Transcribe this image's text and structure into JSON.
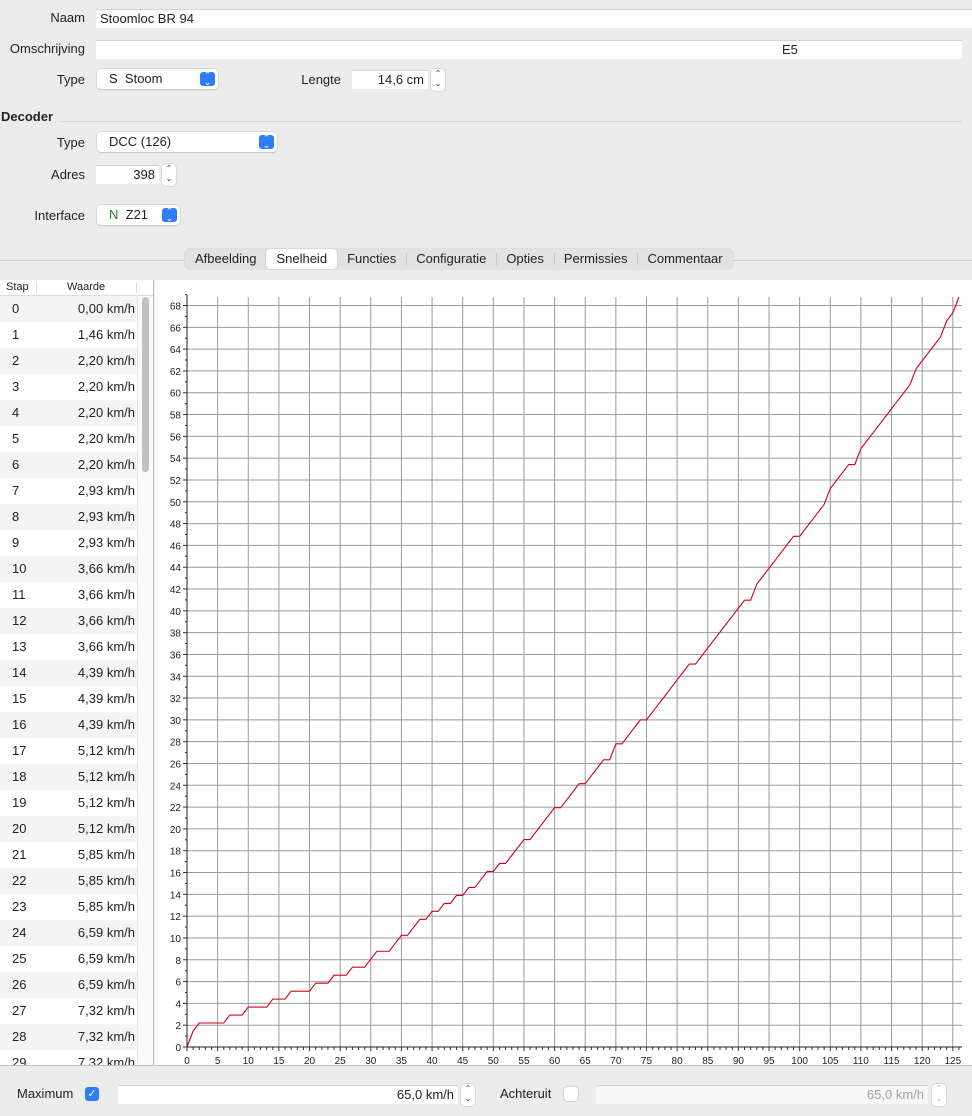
{
  "general": {
    "name_label": "Naam",
    "name_value": "Stoomloc BR 94",
    "description_label": "Omschrijving",
    "description_value": "E5",
    "type_label": "Type",
    "type_prefix": "S",
    "type_value": "Stoom",
    "length_label": "Lengte",
    "length_value": "14,6 cm"
  },
  "decoder": {
    "section_title": "Decoder",
    "type_label": "Type",
    "type_value": "DCC (126)",
    "address_label": "Adres",
    "address_value": "398",
    "interface_label": "Interface",
    "interface_prefix": "N",
    "interface_prefix_color": "#1a8a1a",
    "interface_value": "Z21"
  },
  "tabs": [
    {
      "label": "Afbeelding",
      "active": false
    },
    {
      "label": "Snelheid",
      "active": true
    },
    {
      "label": "Functies",
      "active": false
    },
    {
      "label": "Configuratie",
      "active": false
    },
    {
      "label": "Opties",
      "active": false
    },
    {
      "label": "Permissies",
      "active": false
    },
    {
      "label": "Commentaar",
      "active": false
    }
  ],
  "speed_table": {
    "columns": [
      "Stap",
      "Waarde"
    ],
    "rows": [
      [
        "0",
        "0,00 km/h"
      ],
      [
        "1",
        "1,46 km/h"
      ],
      [
        "2",
        "2,20 km/h"
      ],
      [
        "3",
        "2,20 km/h"
      ],
      [
        "4",
        "2,20 km/h"
      ],
      [
        "5",
        "2,20 km/h"
      ],
      [
        "6",
        "2,20 km/h"
      ],
      [
        "7",
        "2,93 km/h"
      ],
      [
        "8",
        "2,93 km/h"
      ],
      [
        "9",
        "2,93 km/h"
      ],
      [
        "10",
        "3,66 km/h"
      ],
      [
        "11",
        "3,66 km/h"
      ],
      [
        "12",
        "3,66 km/h"
      ],
      [
        "13",
        "3,66 km/h"
      ],
      [
        "14",
        "4,39 km/h"
      ],
      [
        "15",
        "4,39 km/h"
      ],
      [
        "16",
        "4,39 km/h"
      ],
      [
        "17",
        "5,12 km/h"
      ],
      [
        "18",
        "5,12 km/h"
      ],
      [
        "19",
        "5,12 km/h"
      ],
      [
        "20",
        "5,12 km/h"
      ],
      [
        "21",
        "5,85 km/h"
      ],
      [
        "22",
        "5,85 km/h"
      ],
      [
        "23",
        "5,85 km/h"
      ],
      [
        "24",
        "6,59 km/h"
      ],
      [
        "25",
        "6,59 km/h"
      ],
      [
        "26",
        "6,59 km/h"
      ],
      [
        "27",
        "7,32 km/h"
      ],
      [
        "28",
        "7,32 km/h"
      ],
      [
        "29",
        "7,32 km/h"
      ]
    ]
  },
  "chart_data": {
    "type": "line",
    "title": "",
    "xlabel": "",
    "ylabel": "",
    "xlim": [
      0,
      126.5
    ],
    "ylim": [
      0,
      68.78
    ],
    "x_ticks": [
      0,
      5,
      10,
      15,
      20,
      25,
      30,
      35,
      40,
      45,
      50,
      55,
      60,
      65,
      70,
      75,
      80,
      85,
      90,
      95,
      100,
      105,
      110,
      115,
      120,
      125
    ],
    "y_ticks": [
      0,
      2,
      4,
      6,
      8,
      10,
      12,
      14,
      16,
      18,
      20,
      22,
      24,
      26,
      28,
      30,
      32,
      34,
      36,
      38,
      40,
      42,
      44,
      46,
      48,
      50,
      52,
      54,
      56,
      58,
      60,
      62,
      64,
      66,
      68
    ],
    "grid": true,
    "line_color": "#d0021b",
    "series": [
      {
        "values": [
          0.0,
          1.46,
          2.2,
          2.2,
          2.2,
          2.2,
          2.2,
          2.93,
          2.93,
          2.93,
          3.66,
          3.66,
          3.66,
          3.66,
          4.39,
          4.39,
          4.39,
          5.12,
          5.12,
          5.12,
          5.12,
          5.85,
          5.85,
          5.85,
          6.59,
          6.59,
          6.59,
          7.32,
          7.32,
          7.32,
          8.05,
          8.78,
          8.78,
          8.78,
          9.51,
          10.24,
          10.24,
          10.98,
          11.71,
          11.71,
          12.44,
          12.44,
          13.17,
          13.17,
          13.9,
          13.9,
          14.63,
          14.63,
          15.37,
          16.1,
          16.1,
          16.83,
          16.83,
          17.56,
          18.29,
          19.02,
          19.02,
          19.76,
          20.49,
          21.22,
          21.95,
          21.95,
          22.68,
          23.41,
          24.15,
          24.15,
          24.88,
          25.61,
          26.34,
          26.34,
          27.8,
          27.8,
          28.54,
          29.27,
          30.0,
          30.0,
          30.73,
          31.46,
          32.19,
          32.93,
          33.66,
          34.39,
          35.12,
          35.12,
          35.85,
          36.59,
          37.32,
          38.05,
          38.78,
          39.51,
          40.24,
          40.98,
          40.98,
          42.44,
          43.17,
          43.9,
          44.63,
          45.37,
          46.1,
          46.83,
          46.83,
          47.56,
          48.29,
          49.02,
          49.76,
          51.22,
          51.95,
          52.68,
          53.41,
          53.41,
          54.88,
          55.61,
          56.34,
          57.07,
          57.8,
          58.54,
          59.27,
          60.0,
          60.73,
          62.19,
          62.93,
          63.66,
          64.39,
          65.12,
          66.59,
          67.32,
          68.78
        ]
      }
    ]
  },
  "footer": {
    "maximum_label": "Maximum",
    "maximum_checked": true,
    "maximum_value": "65,0 km/h",
    "reverse_label": "Achteruit",
    "reverse_checked": false,
    "reverse_value": "65,0 km/h"
  }
}
